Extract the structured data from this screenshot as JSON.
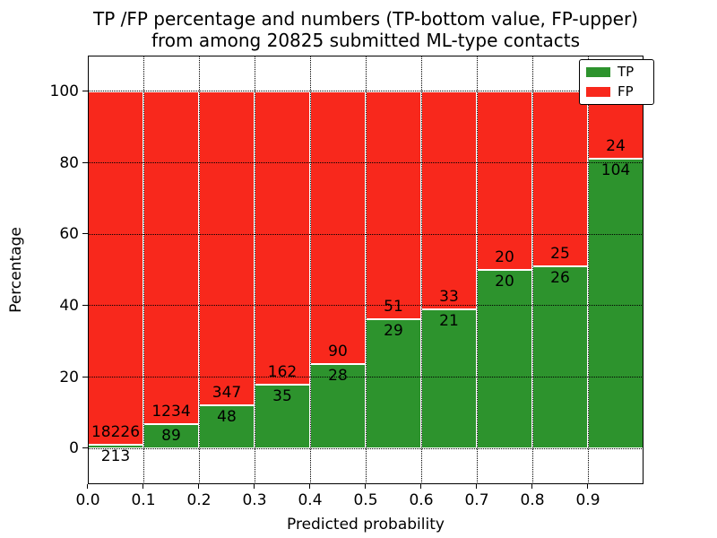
{
  "title": {
    "line1": "TP /FP percentage and numbers (TP-bottom value, FP-upper)",
    "line2": "from among 20825 submitted ML-type contacts"
  },
  "axes": {
    "xlabel": "Predicted probability",
    "ylabel": "Percentage",
    "x_tick_labels": [
      "0.0",
      "0.1",
      "0.2",
      "0.3",
      "0.4",
      "0.5",
      "0.6",
      "0.7",
      "0.8",
      "0.9"
    ],
    "y_ticks": [
      0,
      20,
      40,
      60,
      80,
      100
    ]
  },
  "legend": {
    "items": [
      {
        "label": "TP",
        "color": "#2d932d"
      },
      {
        "label": "FP",
        "color": "#f8281c"
      }
    ]
  },
  "colors": {
    "tp": "#2d932d",
    "fp": "#f8281c",
    "bar_edge": "#ffffff",
    "grid": "#000000",
    "text": "#000000",
    "background": "#ffffff"
  },
  "chart_data": {
    "type": "bar",
    "stacked": true,
    "percent_normalized": true,
    "title": "TP /FP percentage and numbers (TP-bottom value, FP-upper) from among 20825 submitted ML-type contacts",
    "total_contacts": 20825,
    "xlabel": "Predicted probability",
    "ylabel": "Percentage",
    "xlim": [
      0.0,
      1.0
    ],
    "ylim": [
      -10,
      110
    ],
    "grid": "dotted",
    "legend_position": "upper right",
    "bin_width": 0.1,
    "categories": [
      "0.0-0.1",
      "0.1-0.2",
      "0.2-0.3",
      "0.3-0.4",
      "0.4-0.5",
      "0.5-0.6",
      "0.6-0.7",
      "0.7-0.8",
      "0.8-0.9",
      "0.9-1.0"
    ],
    "series": [
      {
        "name": "TP",
        "counts": [
          213,
          89,
          48,
          35,
          28,
          29,
          21,
          20,
          26,
          104
        ]
      },
      {
        "name": "FP",
        "counts": [
          18226,
          1234,
          347,
          162,
          90,
          51,
          33,
          20,
          25,
          24
        ]
      }
    ],
    "tp_percent_heights": [
      1.2,
      6.7,
      12.2,
      17.8,
      23.7,
      36.3,
      38.9,
      50.0,
      51.0,
      81.3
    ]
  }
}
